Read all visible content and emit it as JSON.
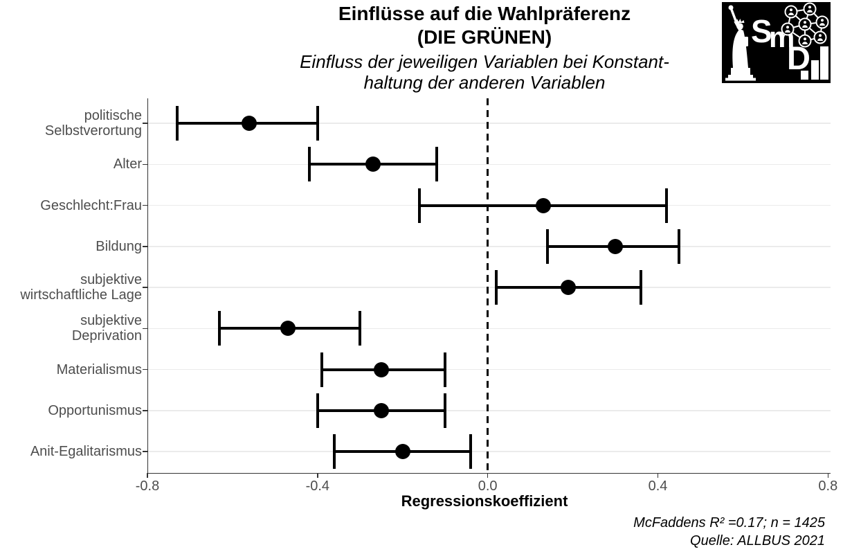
{
  "header": {
    "title_line1": "Einflüsse auf die Wahlpräferenz",
    "title_line2": "(DIE GRÜNEN)",
    "subtitle_line1": "Einfluss der jeweiligen Variablen bei Konstant-",
    "subtitle_line2": "haltung der anderen Variablen"
  },
  "logo": {
    "letter_s": "S",
    "letter_m": "m",
    "letter_d": "D"
  },
  "chart_data": {
    "type": "scatter",
    "subtype": "coefficient-plot-with-error-bars",
    "title": "Einflüsse auf die Wahlpräferenz (DIE GRÜNEN)",
    "subtitle": "Einfluss der jeweiligen Variablen bei Konstanthaltung der anderen Variablen",
    "orientation": "horizontal",
    "categories": [
      "politische\nSelbstverortung",
      "Alter",
      "Geschlecht:Frau",
      "Bildung",
      "subjektive\nwirtschaftliche Lage",
      "subjektive\nDeprivation",
      "Materialismus",
      "Opportunismus",
      "Anit-Egalitarismus"
    ],
    "series": [
      {
        "name": "Regressionskoeffizient",
        "values": [
          -0.56,
          -0.27,
          0.13,
          0.3,
          0.19,
          -0.47,
          -0.25,
          -0.25,
          -0.2
        ]
      },
      {
        "name": "ci_low",
        "values": [
          -0.73,
          -0.42,
          -0.16,
          0.14,
          0.02,
          -0.63,
          -0.39,
          -0.4,
          -0.36
        ]
      },
      {
        "name": "ci_high",
        "values": [
          -0.4,
          -0.12,
          0.42,
          0.45,
          0.36,
          -0.3,
          -0.1,
          -0.1,
          -0.04
        ]
      }
    ],
    "xlabel": "Regressionskoeffizient",
    "ylabel": "",
    "xlim": [
      -0.8,
      0.806
    ],
    "x_ticks": [
      {
        "value": -0.8,
        "label": "-0.8"
      },
      {
        "value": -0.4,
        "label": "-0.4"
      },
      {
        "value": 0.0,
        "label": "0.0"
      },
      {
        "value": 0.4,
        "label": "0.4"
      },
      {
        "value": 0.8,
        "label": "0.8"
      }
    ],
    "zero_line": 0.0,
    "grid": "horizontal-major-only",
    "legend": "none",
    "caption_line1": "McFaddens R² =0.17; n = 1425",
    "caption_line2": "Quelle: ALLBUS 2021"
  },
  "colors": {
    "background": "#ffffff",
    "data": "#000000",
    "axis_line": "#333333",
    "axis_text": "#4d4d4d",
    "gridline": "#ebebeb",
    "title_text": "#000000",
    "logo_background": "#000000",
    "logo_foreground": "#ffffff"
  }
}
